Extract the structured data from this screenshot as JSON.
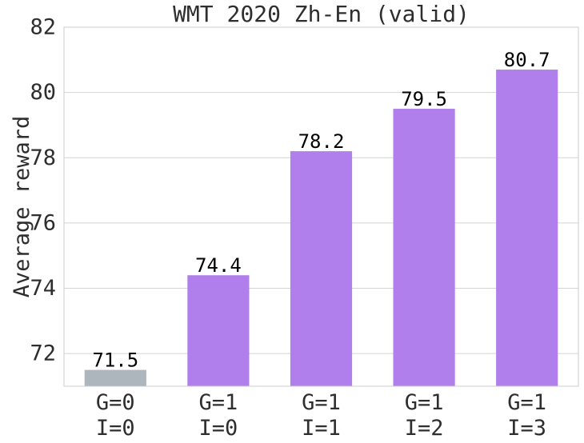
{
  "chart_data": {
    "type": "bar",
    "title": "WMT 2020 Zh-En (valid)",
    "xlabel": "",
    "ylabel": "Average reward",
    "categories": [
      [
        "G=0",
        "I=0"
      ],
      [
        "G=1",
        "I=0"
      ],
      [
        "G=1",
        "I=1"
      ],
      [
        "G=1",
        "I=2"
      ],
      [
        "G=1",
        "I=3"
      ]
    ],
    "values": [
      71.5,
      74.4,
      78.2,
      79.5,
      80.7
    ],
    "data_labels": [
      "71.5",
      "74.4",
      "78.2",
      "79.5",
      "80.7"
    ],
    "bar_colors": [
      "#adb5bd",
      "#b07fec",
      "#b07fec",
      "#b07fec",
      "#b07fec"
    ],
    "ylim": [
      71,
      82
    ],
    "yticks": [
      72,
      74,
      76,
      78,
      80,
      82
    ],
    "grid": true,
    "legend": "none"
  }
}
